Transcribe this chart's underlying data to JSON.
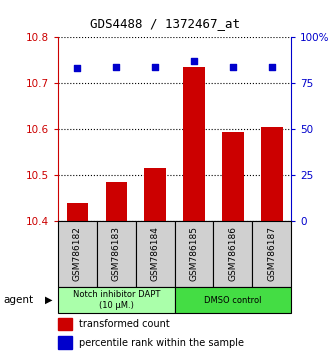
{
  "title": "GDS4488 / 1372467_at",
  "samples": [
    "GSM786182",
    "GSM786183",
    "GSM786184",
    "GSM786185",
    "GSM786186",
    "GSM786187"
  ],
  "bar_values": [
    10.44,
    10.485,
    10.515,
    10.735,
    10.595,
    10.605
  ],
  "percentile_values": [
    83,
    84,
    84,
    87,
    84,
    84
  ],
  "ylim_left": [
    10.4,
    10.8
  ],
  "ylim_right": [
    0,
    100
  ],
  "yticks_left": [
    10.4,
    10.5,
    10.6,
    10.7,
    10.8
  ],
  "yticks_right": [
    0,
    25,
    50,
    75,
    100
  ],
  "ytick_labels_right": [
    "0",
    "25",
    "50",
    "75",
    "100%"
  ],
  "bar_color": "#cc0000",
  "dot_color": "#0000cc",
  "agent_groups": [
    {
      "label": "Notch inhibitor DAPT\n(10 μM.)",
      "start": 0,
      "end": 3,
      "color": "#aaffaa"
    },
    {
      "label": "DMSO control",
      "start": 3,
      "end": 6,
      "color": "#44dd44"
    }
  ],
  "legend_bar_label": "transformed count",
  "legend_dot_label": "percentile rank within the sample",
  "agent_label": "agent",
  "bar_width": 0.55,
  "left_axis_color": "#cc0000",
  "right_axis_color": "#0000cc",
  "sample_box_color": "#d0d0d0",
  "sample_box_edge": "#000000"
}
